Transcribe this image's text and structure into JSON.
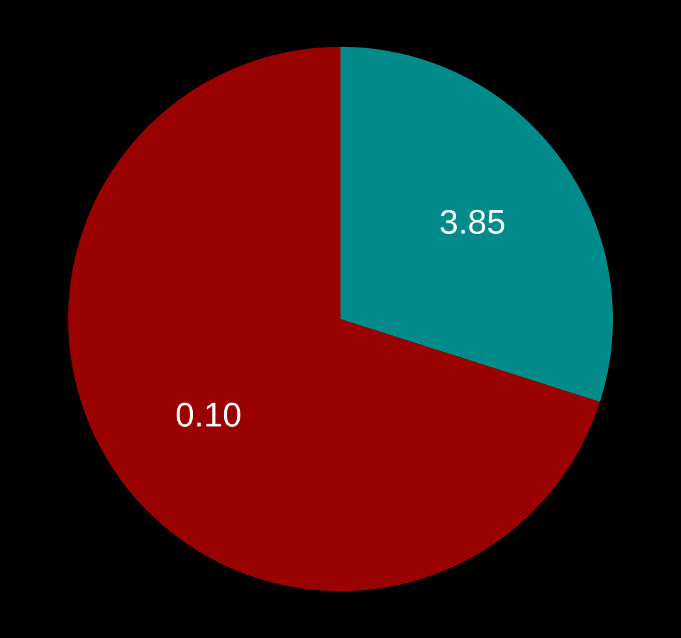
{
  "chart_data": {
    "type": "pie",
    "title": "",
    "slices": [
      {
        "label": "3.85",
        "share": 0.2992,
        "color": "#008b8b"
      },
      {
        "label": "0.10",
        "share": 0.7008,
        "color": "#990000"
      }
    ],
    "start_angle_deg": 0,
    "direction": "clockwise",
    "legend": "none"
  },
  "colors": {
    "background": "#000000",
    "label_text": "#ffffff"
  }
}
